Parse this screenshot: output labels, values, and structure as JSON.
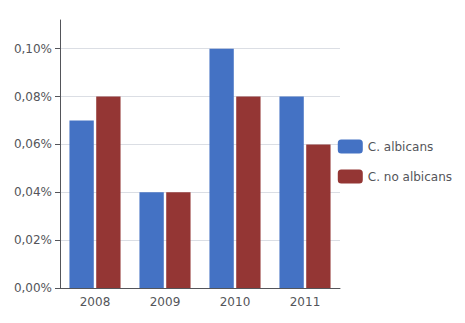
{
  "chart_data": {
    "type": "bar",
    "categories": [
      "2008",
      "2009",
      "2010",
      "2011"
    ],
    "series": [
      {
        "name": "C. albicans",
        "color": "#4472C4",
        "values": [
          0.0007,
          0.0004,
          0.001,
          0.0008
        ]
      },
      {
        "name": "C. no albicans",
        "color": "#943634",
        "values": [
          0.0008,
          0.0004,
          0.0008,
          0.0006
        ]
      }
    ],
    "ylim": [
      0,
      0.00112
    ],
    "yticks": [
      {
        "value": 0.0,
        "label": "0,00%"
      },
      {
        "value": 0.0002,
        "label": "0,02%"
      },
      {
        "value": 0.0004,
        "label": "0,04%"
      },
      {
        "value": 0.0006,
        "label": "0,06%"
      },
      {
        "value": 0.0008,
        "label": "0,08%"
      },
      {
        "value": 0.001,
        "label": "0,10%"
      }
    ],
    "grid": true,
    "legend": "right"
  }
}
